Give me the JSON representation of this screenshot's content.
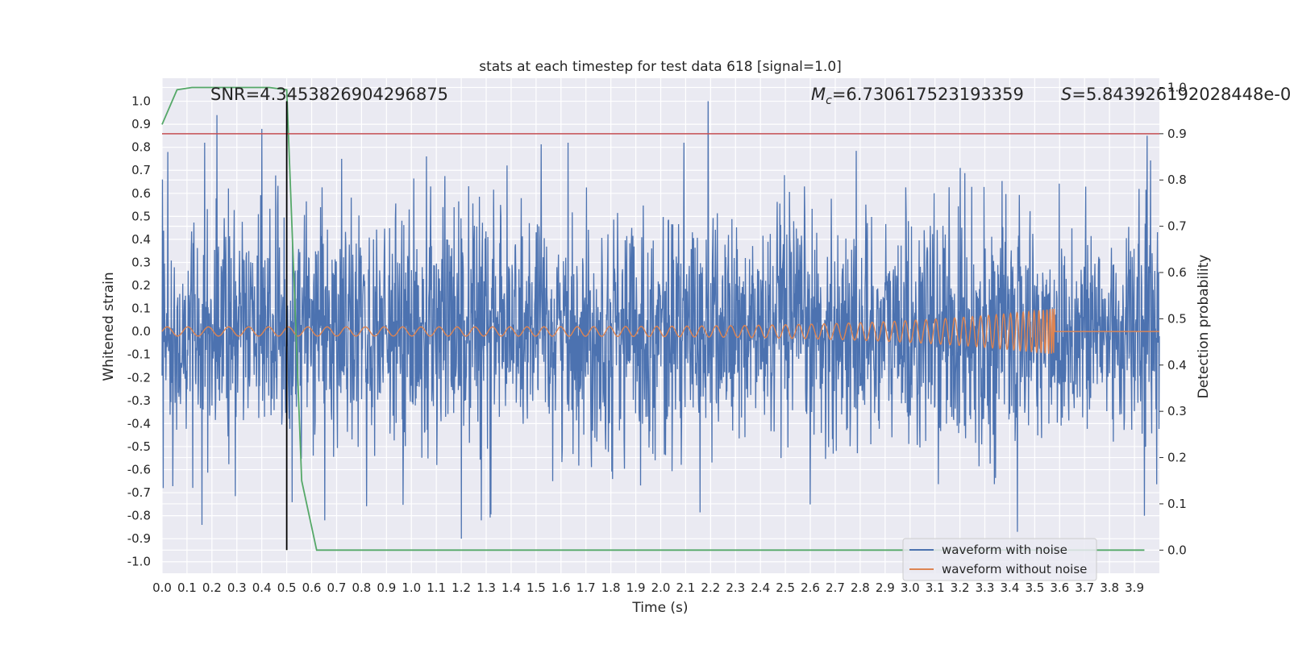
{
  "chart_data": {
    "type": "line",
    "title": "stats at each timestep for test data 618 [signal=1.0]",
    "xlabel": "Time (s)",
    "ylabel": "Whitened strain",
    "y2label": "Detection probability",
    "xlim": [
      0.0,
      4.0
    ],
    "ylim": [
      -1.05,
      1.1
    ],
    "y2lim": [
      -0.05,
      1.02
    ],
    "x_ticks": [
      "0.0",
      "0.1",
      "0.2",
      "0.3",
      "0.4",
      "0.5",
      "0.6",
      "0.7",
      "0.8",
      "0.9",
      "1.0",
      "1.1",
      "1.2",
      "1.3",
      "1.4",
      "1.5",
      "1.6",
      "1.7",
      "1.8",
      "1.9",
      "2.0",
      "2.1",
      "2.2",
      "2.3",
      "2.4",
      "2.5",
      "2.6",
      "2.7",
      "2.8",
      "2.9",
      "3.0",
      "3.1",
      "3.2",
      "3.3",
      "3.4",
      "3.5",
      "3.6",
      "3.7",
      "3.8",
      "3.9"
    ],
    "y_ticks": [
      "-1.0",
      "-0.9",
      "-0.8",
      "-0.7",
      "-0.6",
      "-0.5",
      "-0.4",
      "-0.3",
      "-0.2",
      "-0.1",
      "0.0",
      "0.1",
      "0.2",
      "0.3",
      "0.4",
      "0.5",
      "0.6",
      "0.7",
      "0.8",
      "0.9",
      "1.0"
    ],
    "y2_ticks": [
      "0.0",
      "0.1",
      "0.2",
      "0.3",
      "0.4",
      "0.5",
      "0.6",
      "0.7",
      "0.8",
      "0.9",
      "1.0"
    ],
    "grid": true,
    "legend_position": "lower-right",
    "annotations": {
      "snr": "SNR=4.3453826904296875",
      "mc_symbol": "M",
      "mc_sub": "c",
      "mc_value": "=6.730617523193359",
      "s_symbol": "S",
      "s_value": "=5.843926192028448e-0"
    },
    "threshold": {
      "axis": "right",
      "value": 0.9,
      "color": "#c44e52"
    },
    "detection_marker_x": 0.5,
    "series": [
      {
        "name": "waveform with noise",
        "axis": "left",
        "color": "#4c72b0",
        "kind": "noise",
        "typical_amplitude": 0.25,
        "peaks": [
          {
            "x": 0.0,
            "y": 0.66
          },
          {
            "x": 0.0,
            "y": -0.68
          },
          {
            "x": 0.22,
            "y": 0.94
          },
          {
            "x": 0.16,
            "y": -0.84
          },
          {
            "x": 0.4,
            "y": 0.88
          },
          {
            "x": 0.72,
            "y": 0.75
          },
          {
            "x": 1.2,
            "y": -0.9
          },
          {
            "x": 2.19,
            "y": 1.0
          },
          {
            "x": 3.43,
            "y": -0.87
          },
          {
            "x": 3.95,
            "y": 0.85
          },
          {
            "x": 3.94,
            "y": -0.8
          }
        ]
      },
      {
        "name": "waveform without noise",
        "axis": "left",
        "color": "#dd8452",
        "kind": "chirp",
        "amplitude_start": 0.02,
        "amplitude_end": 0.1,
        "chirp_end_time": 3.58
      },
      {
        "name": "",
        "axis": "right",
        "color": "#55a868",
        "kind": "probability",
        "x": [
          0.0,
          0.06,
          0.12,
          0.18,
          0.25,
          0.31,
          0.37,
          0.43,
          0.5,
          0.56,
          0.62,
          0.68,
          3.94
        ],
        "y": [
          0.92,
          0.995,
          1.0,
          1.0,
          1.0,
          1.0,
          1.0,
          1.0,
          0.995,
          0.15,
          0.0,
          0.0,
          0.0
        ]
      }
    ]
  }
}
